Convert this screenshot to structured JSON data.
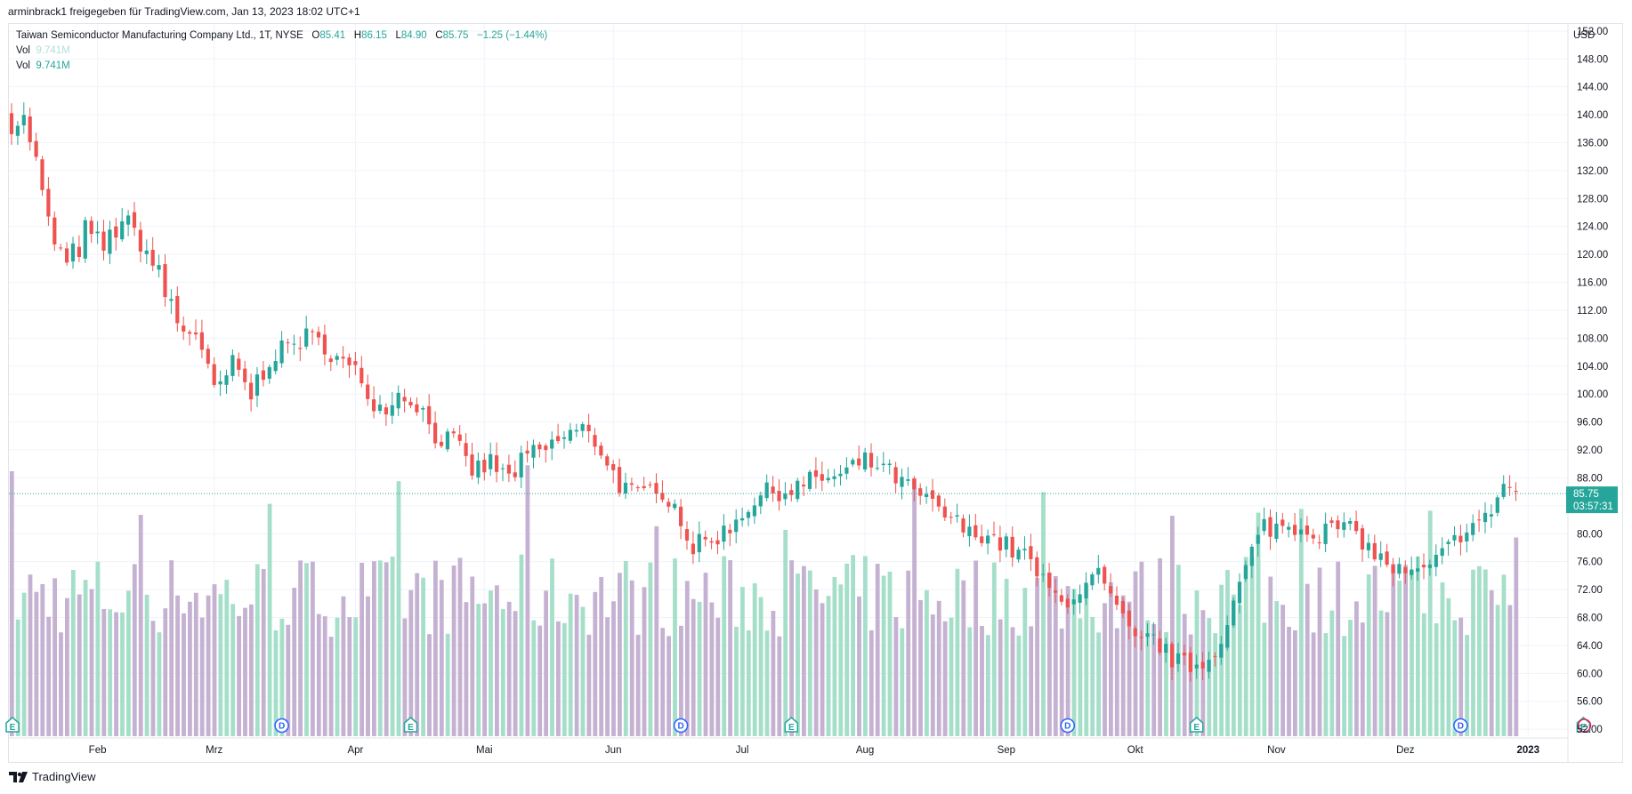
{
  "header": {
    "text": "arminbrack1 freigegeben für TradingView.com, Jan 13, 2023 18:02 UTC+1"
  },
  "legend": {
    "symbol": "Taiwan Semiconductor Manufacturing Company Ltd., 1T, NYSE",
    "o_label": "O",
    "o_value": "85.41",
    "h_label": "H",
    "h_value": "86.15",
    "l_label": "L",
    "l_value": "84.90",
    "c_label": "C",
    "c_value": "85.75",
    "change": "−1.25 (−1.44%)",
    "vol1_label": "Vol",
    "vol1_value": "9.741M",
    "vol2_label": "Vol",
    "vol2_value": "9.741M"
  },
  "footer": {
    "brand": "TradingView"
  },
  "colors": {
    "up": "#26a69a",
    "down": "#ef5350",
    "vol_up": "#a5dfc9",
    "vol_down": "#c5b1d2",
    "grid": "#f0f3fa",
    "marker_blue": "#2962ff"
  },
  "chart_data": {
    "type": "candlestick",
    "currency": "USD",
    "ylim": [
      51,
      153
    ],
    "y_ticks": [
      52,
      56,
      60,
      64,
      68,
      72,
      76,
      80,
      84,
      88,
      92,
      96,
      100,
      104,
      108,
      112,
      116,
      120,
      124,
      128,
      132,
      136,
      140,
      144,
      148,
      152
    ],
    "y_tick_labels": [
      "52.00",
      "56.00",
      "60.00",
      "64.00",
      "68.00",
      "72.00",
      "76.00",
      "80.00",
      "84.00",
      "88.00",
      "92.00",
      "96.00",
      "100.00",
      "104.00",
      "108.00",
      "112.00",
      "116.00",
      "120.00",
      "124.00",
      "128.00",
      "132.00",
      "136.00",
      "140.00",
      "144.00",
      "148.00",
      "152.00"
    ],
    "x_labels": [
      {
        "label": "Feb",
        "idx": 14
      },
      {
        "label": "Mrz",
        "idx": 33
      },
      {
        "label": "Apr",
        "idx": 56
      },
      {
        "label": "Mai",
        "idx": 77
      },
      {
        "label": "Jun",
        "idx": 98
      },
      {
        "label": "Jul",
        "idx": 119
      },
      {
        "label": "Aug",
        "idx": 139
      },
      {
        "label": "Sep",
        "idx": 162
      },
      {
        "label": "Okt",
        "idx": 183
      },
      {
        "label": "Nov",
        "idx": 206
      },
      {
        "label": "Dez",
        "idx": 227
      },
      {
        "label": "2023",
        "idx": 247
      }
    ],
    "last_price": "85.75",
    "countdown": "03:57:31",
    "volume_max": 32,
    "events": [
      {
        "type": "E",
        "idx": 0
      },
      {
        "type": "D",
        "idx": 44
      },
      {
        "type": "E",
        "idx": 65
      },
      {
        "type": "D",
        "idx": 109
      },
      {
        "type": "E",
        "idx": 127
      },
      {
        "type": "D",
        "idx": 172
      },
      {
        "type": "E",
        "idx": 193
      },
      {
        "type": "D",
        "idx": 236
      },
      {
        "type": "E",
        "idx": 256
      }
    ],
    "anchors": [
      [
        0,
        141.5,
        9.5
      ],
      [
        3,
        137,
        6
      ],
      [
        6,
        124,
        5
      ],
      [
        9,
        118,
        5
      ],
      [
        12,
        123,
        5
      ],
      [
        15,
        121,
        4
      ],
      [
        18,
        125,
        4
      ],
      [
        21,
        122,
        4
      ],
      [
        24,
        117,
        4
      ],
      [
        27,
        110,
        11
      ],
      [
        30,
        109,
        3
      ],
      [
        33,
        100,
        4
      ],
      [
        36,
        104,
        4
      ],
      [
        39,
        100,
        5
      ],
      [
        42,
        105,
        3
      ],
      [
        45,
        107,
        3
      ],
      [
        48,
        108,
        4
      ],
      [
        51,
        107,
        3
      ],
      [
        54,
        104,
        5
      ],
      [
        57,
        102,
        4
      ],
      [
        60,
        98,
        4
      ],
      [
        63,
        100,
        3
      ],
      [
        66,
        99,
        4
      ],
      [
        69,
        94,
        3
      ],
      [
        72,
        93,
        4
      ],
      [
        75,
        89,
        3
      ],
      [
        78,
        90,
        4
      ],
      [
        81,
        88,
        3
      ],
      [
        84,
        91,
        4
      ],
      [
        87,
        92,
        3
      ],
      [
        90,
        94,
        4
      ],
      [
        93,
        95,
        3
      ],
      [
        96,
        92,
        3
      ],
      [
        99,
        87,
        3
      ],
      [
        102,
        85,
        4
      ],
      [
        105,
        87,
        3
      ],
      [
        108,
        84,
        3
      ],
      [
        111,
        78,
        4
      ],
      [
        114,
        79,
        3
      ],
      [
        117,
        81,
        3
      ],
      [
        120,
        84,
        3
      ],
      [
        123,
        86,
        3
      ],
      [
        126,
        86,
        3
      ],
      [
        129,
        87,
        4
      ],
      [
        132,
        88,
        3
      ],
      [
        135,
        88,
        4
      ],
      [
        138,
        90,
        4
      ],
      [
        141,
        90,
        4
      ],
      [
        144,
        88,
        3
      ],
      [
        147,
        86,
        3
      ],
      [
        150,
        84,
        3
      ],
      [
        153,
        82,
        4
      ],
      [
        156,
        80,
        3
      ],
      [
        159,
        80,
        3
      ],
      [
        162,
        78,
        4
      ],
      [
        165,
        77,
        3
      ],
      [
        168,
        73,
        3
      ],
      [
        171,
        70,
        3
      ],
      [
        174,
        72,
        3
      ],
      [
        177,
        74,
        3
      ],
      [
        180,
        69,
        3
      ],
      [
        183,
        64,
        4
      ],
      [
        186,
        65,
        3
      ],
      [
        189,
        62,
        3
      ],
      [
        192,
        61,
        3
      ],
      [
        195,
        62,
        3
      ],
      [
        198,
        67,
        3
      ],
      [
        201,
        75,
        5
      ],
      [
        204,
        81,
        4
      ],
      [
        207,
        81,
        3
      ],
      [
        210,
        81,
        3
      ],
      [
        213,
        80,
        3
      ],
      [
        216,
        81,
        4
      ],
      [
        219,
        80,
        3
      ],
      [
        222,
        77,
        3
      ],
      [
        225,
        75,
        3
      ],
      [
        228,
        74,
        3
      ],
      [
        231,
        75,
        3
      ],
      [
        234,
        78,
        3
      ],
      [
        237,
        81,
        3
      ],
      [
        240,
        82,
        3
      ],
      [
        243,
        87,
        4
      ],
      [
        245,
        86,
        3
      ]
    ],
    "n_bars": 246
  }
}
